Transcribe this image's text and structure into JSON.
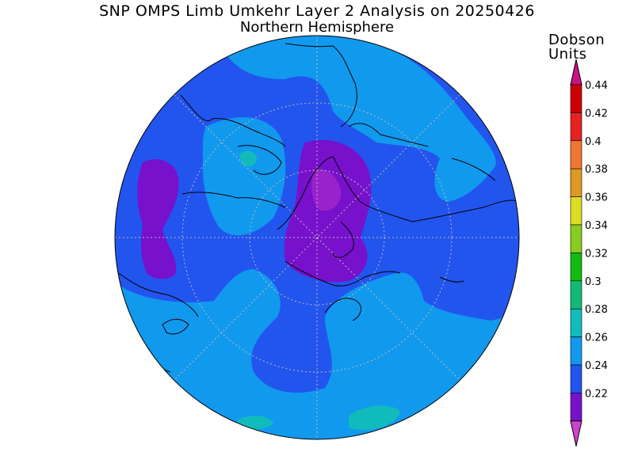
{
  "title": {
    "line1": "SNP OMPS Limb Umkehr Layer 2 Analysis on 20250426",
    "line2": "Northern Hemisphere"
  },
  "colorbar": {
    "units_line1": "Dobson",
    "units_line2": "Units",
    "levels": [
      {
        "label": "0.44",
        "color": "#cc0000"
      },
      {
        "label": "0.42",
        "color": "#e52222"
      },
      {
        "label": "0.4",
        "color": "#ee7733"
      },
      {
        "label": "0.38",
        "color": "#dd9922"
      },
      {
        "label": "0.36",
        "color": "#dddd22"
      },
      {
        "label": "0.34",
        "color": "#88cc22"
      },
      {
        "label": "0.32",
        "color": "#11bb11"
      },
      {
        "label": "0.3",
        "color": "#11bb77"
      },
      {
        "label": "0.28",
        "color": "#11bbbb"
      },
      {
        "label": "0.26",
        "color": "#1199ee"
      },
      {
        "label": "0.24",
        "color": "#2255ee"
      },
      {
        "label": "0.22",
        "color": "#7711cc"
      }
    ],
    "top_arrow_color": "#cc1188",
    "bottom_arrow_color": "#cc44cc"
  },
  "map": {
    "projection": "north-polar-stereographic",
    "background_level_color": "#2255ee",
    "colors": {
      "light_blue": "#1199ee",
      "blue": "#2255ee",
      "violet": "#7711cc",
      "magenta": "#9922cc",
      "teal": "#11bbbb",
      "coast": "#000000",
      "graticule": "#bbbbbb"
    }
  }
}
